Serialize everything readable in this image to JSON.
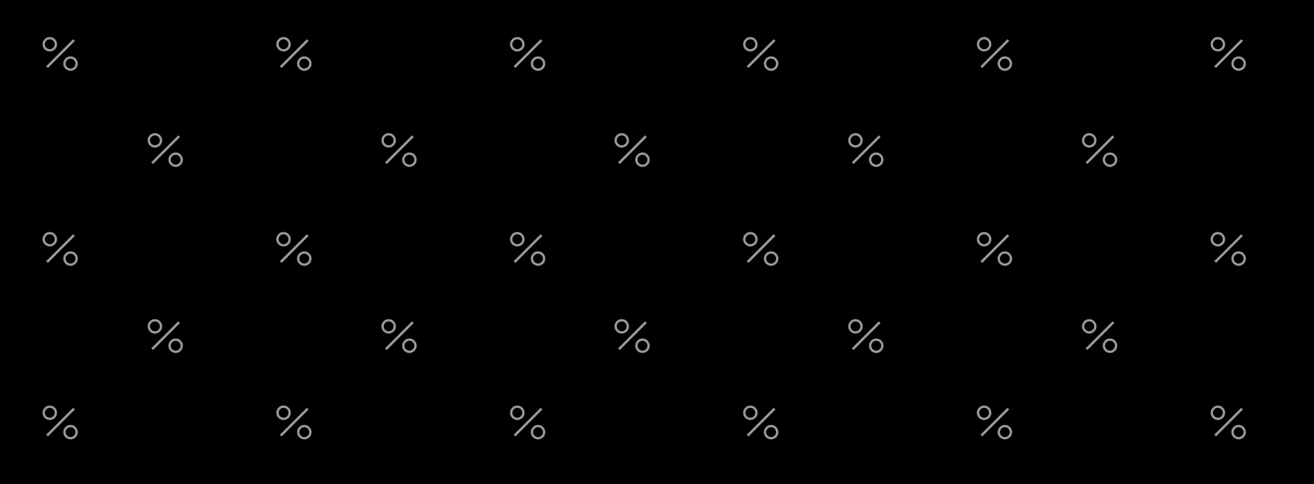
{
  "pattern": {
    "icon": "percent-icon",
    "color": "#999999",
    "background": "#000000",
    "rows": [
      {
        "count": 6
      },
      {
        "count": 5
      },
      {
        "count": 6
      },
      {
        "count": 5
      },
      {
        "count": 6
      }
    ]
  }
}
